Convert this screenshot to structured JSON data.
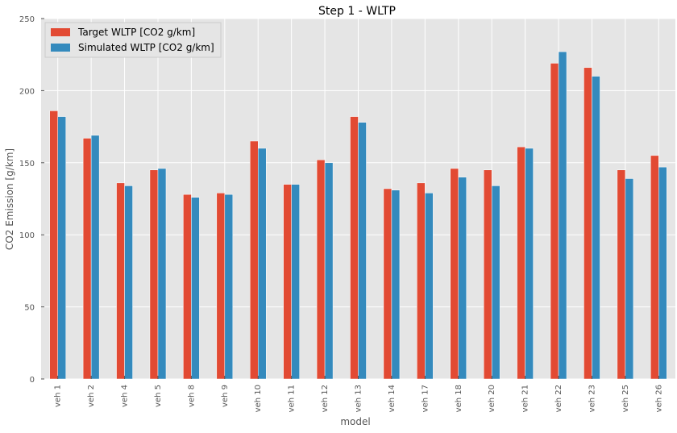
{
  "chart_data": {
    "type": "bar",
    "title": "Step 1 - WLTP",
    "xlabel": "model",
    "ylabel": "CO2 Emission [g/km]",
    "ylim": [
      0,
      250
    ],
    "yticks": [
      0,
      50,
      100,
      150,
      200,
      250
    ],
    "grid": true,
    "legend_position": "top-left",
    "categories": [
      "veh 1",
      "veh 2",
      "veh 4",
      "veh 5",
      "veh 8",
      "veh 9",
      "veh 10",
      "veh 11",
      "veh 12",
      "veh 13",
      "veh 14",
      "veh 17",
      "veh 18",
      "veh 20",
      "veh 21",
      "veh 22",
      "veh 23",
      "veh 25",
      "veh 26"
    ],
    "series": [
      {
        "name": "Target WLTP [CO2 g/km]",
        "color": "#E24A33",
        "values": [
          186,
          167,
          136,
          145,
          128,
          129,
          165,
          135,
          152,
          182,
          132,
          136,
          146,
          145,
          161,
          219,
          216,
          145,
          155
        ]
      },
      {
        "name": "Simulated WLTP [CO2 g/km]",
        "color": "#348ABD",
        "values": [
          182,
          169,
          134,
          146,
          126,
          128,
          160,
          135,
          150,
          178,
          131,
          129,
          140,
          134,
          160,
          227,
          210,
          139,
          147
        ]
      }
    ]
  }
}
